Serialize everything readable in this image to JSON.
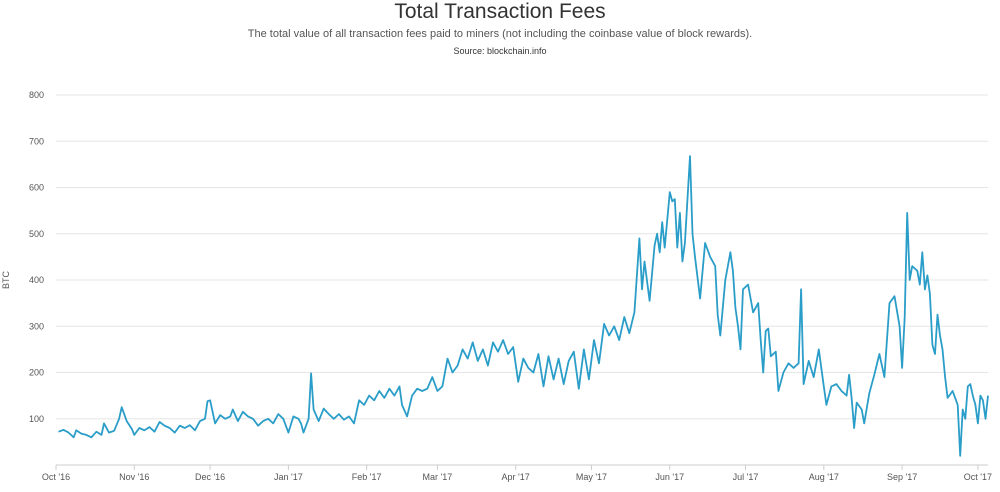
{
  "header": {
    "title": "Total Transaction Fees",
    "subtitle": "The total value of all transaction fees paid to miners (not including the coinbase value of block rewards).",
    "source": "Source: blockchain.info"
  },
  "colors": {
    "line": "#2a9dc8",
    "grid": "#e6e6e6",
    "axis": "#cccccc"
  },
  "chart_data": {
    "type": "line",
    "title": "Total Transaction Fees",
    "xlabel": "",
    "ylabel": "BTC",
    "ylim": [
      0,
      800
    ],
    "yticks": [
      100,
      200,
      300,
      400,
      500,
      600,
      700,
      800
    ],
    "x_range_days": [
      0,
      369
    ],
    "xticks": [
      {
        "label": "Oct '16",
        "day": 0
      },
      {
        "label": "Nov '16",
        "day": 31
      },
      {
        "label": "Dec '16",
        "day": 61
      },
      {
        "label": "Jan '17",
        "day": 92
      },
      {
        "label": "Feb '17",
        "day": 123
      },
      {
        "label": "Mar '17",
        "day": 151
      },
      {
        "label": "Apr '17",
        "day": 182
      },
      {
        "label": "May '17",
        "day": 212
      },
      {
        "label": "Jun '17",
        "day": 243
      },
      {
        "label": "Jul '17",
        "day": 273
      },
      {
        "label": "Aug '17",
        "day": 304
      },
      {
        "label": "Sep '17",
        "day": 335
      },
      {
        "label": "Oct '17",
        "day": 365
      }
    ],
    "series": [
      {
        "name": "Total Transaction Fees (BTC)",
        "points": [
          [
            1,
            72
          ],
          [
            3,
            76
          ],
          [
            5,
            70
          ],
          [
            7,
            60
          ],
          [
            8,
            75
          ],
          [
            10,
            68
          ],
          [
            12,
            65
          ],
          [
            14,
            60
          ],
          [
            16,
            72
          ],
          [
            18,
            65
          ],
          [
            19,
            90
          ],
          [
            21,
            70
          ],
          [
            23,
            74
          ],
          [
            25,
            100
          ],
          [
            26,
            125
          ],
          [
            28,
            95
          ],
          [
            30,
            78
          ],
          [
            31,
            65
          ],
          [
            33,
            80
          ],
          [
            35,
            75
          ],
          [
            37,
            82
          ],
          [
            39,
            72
          ],
          [
            41,
            93
          ],
          [
            43,
            85
          ],
          [
            45,
            80
          ],
          [
            47,
            70
          ],
          [
            49,
            85
          ],
          [
            51,
            80
          ],
          [
            53,
            86
          ],
          [
            55,
            75
          ],
          [
            57,
            95
          ],
          [
            59,
            100
          ],
          [
            60,
            138
          ],
          [
            61,
            140
          ],
          [
            63,
            90
          ],
          [
            65,
            108
          ],
          [
            67,
            100
          ],
          [
            69,
            105
          ],
          [
            70,
            120
          ],
          [
            72,
            95
          ],
          [
            74,
            115
          ],
          [
            76,
            105
          ],
          [
            78,
            100
          ],
          [
            80,
            85
          ],
          [
            82,
            95
          ],
          [
            84,
            100
          ],
          [
            86,
            90
          ],
          [
            88,
            110
          ],
          [
            90,
            100
          ],
          [
            92,
            70
          ],
          [
            94,
            105
          ],
          [
            96,
            100
          ],
          [
            97,
            90
          ],
          [
            98,
            70
          ],
          [
            100,
            100
          ],
          [
            101,
            198
          ],
          [
            102,
            120
          ],
          [
            104,
            95
          ],
          [
            106,
            122
          ],
          [
            108,
            110
          ],
          [
            110,
            100
          ],
          [
            112,
            110
          ],
          [
            114,
            98
          ],
          [
            116,
            105
          ],
          [
            118,
            90
          ],
          [
            120,
            140
          ],
          [
            122,
            130
          ],
          [
            124,
            150
          ],
          [
            126,
            140
          ],
          [
            128,
            160
          ],
          [
            130,
            145
          ],
          [
            132,
            165
          ],
          [
            134,
            150
          ],
          [
            136,
            170
          ],
          [
            137,
            130
          ],
          [
            139,
            105
          ],
          [
            141,
            150
          ],
          [
            143,
            165
          ],
          [
            145,
            160
          ],
          [
            147,
            165
          ],
          [
            149,
            190
          ],
          [
            151,
            160
          ],
          [
            153,
            170
          ],
          [
            155,
            230
          ],
          [
            157,
            200
          ],
          [
            159,
            215
          ],
          [
            161,
            250
          ],
          [
            163,
            230
          ],
          [
            165,
            265
          ],
          [
            167,
            225
          ],
          [
            169,
            250
          ],
          [
            171,
            215
          ],
          [
            173,
            265
          ],
          [
            175,
            245
          ],
          [
            177,
            270
          ],
          [
            179,
            240
          ],
          [
            181,
            255
          ],
          [
            183,
            180
          ],
          [
            185,
            230
          ],
          [
            187,
            210
          ],
          [
            189,
            200
          ],
          [
            191,
            240
          ],
          [
            193,
            170
          ],
          [
            195,
            235
          ],
          [
            197,
            185
          ],
          [
            199,
            230
          ],
          [
            201,
            175
          ],
          [
            203,
            225
          ],
          [
            205,
            245
          ],
          [
            207,
            165
          ],
          [
            209,
            250
          ],
          [
            211,
            185
          ],
          [
            213,
            270
          ],
          [
            215,
            220
          ],
          [
            217,
            305
          ],
          [
            219,
            280
          ],
          [
            221,
            300
          ],
          [
            223,
            270
          ],
          [
            225,
            320
          ],
          [
            227,
            285
          ],
          [
            229,
            330
          ],
          [
            231,
            490
          ],
          [
            232,
            380
          ],
          [
            233,
            440
          ],
          [
            235,
            355
          ],
          [
            237,
            475
          ],
          [
            238,
            500
          ],
          [
            239,
            460
          ],
          [
            240,
            525
          ],
          [
            241,
            470
          ],
          [
            243,
            590
          ],
          [
            244,
            570
          ],
          [
            245,
            575
          ],
          [
            246,
            470
          ],
          [
            247,
            545
          ],
          [
            248,
            440
          ],
          [
            249,
            480
          ],
          [
            251,
            668
          ],
          [
            252,
            500
          ],
          [
            253,
            450
          ],
          [
            255,
            360
          ],
          [
            257,
            480
          ],
          [
            259,
            450
          ],
          [
            261,
            430
          ],
          [
            262,
            325
          ],
          [
            263,
            280
          ],
          [
            265,
            400
          ],
          [
            267,
            460
          ],
          [
            268,
            420
          ],
          [
            269,
            340
          ],
          [
            270,
            300
          ],
          [
            271,
            250
          ],
          [
            272,
            380
          ],
          [
            274,
            390
          ],
          [
            276,
            330
          ],
          [
            278,
            350
          ],
          [
            279,
            270
          ],
          [
            280,
            200
          ],
          [
            281,
            290
          ],
          [
            282,
            295
          ],
          [
            283,
            235
          ],
          [
            285,
            245
          ],
          [
            286,
            160
          ],
          [
            288,
            200
          ],
          [
            290,
            220
          ],
          [
            292,
            210
          ],
          [
            294,
            220
          ],
          [
            295,
            380
          ],
          [
            296,
            175
          ],
          [
            298,
            225
          ],
          [
            300,
            190
          ],
          [
            302,
            250
          ],
          [
            304,
            170
          ],
          [
            305,
            130
          ],
          [
            307,
            170
          ],
          [
            309,
            175
          ],
          [
            311,
            160
          ],
          [
            313,
            150
          ],
          [
            314,
            195
          ],
          [
            315,
            145
          ],
          [
            316,
            80
          ],
          [
            317,
            135
          ],
          [
            319,
            120
          ],
          [
            320,
            90
          ],
          [
            322,
            155
          ],
          [
            324,
            195
          ],
          [
            326,
            240
          ],
          [
            328,
            190
          ],
          [
            330,
            350
          ],
          [
            332,
            365
          ],
          [
            334,
            300
          ],
          [
            335,
            210
          ],
          [
            336,
            320
          ],
          [
            337,
            545
          ],
          [
            338,
            400
          ],
          [
            339,
            430
          ],
          [
            341,
            420
          ],
          [
            342,
            390
          ],
          [
            343,
            460
          ],
          [
            344,
            380
          ],
          [
            345,
            410
          ],
          [
            346,
            370
          ],
          [
            347,
            260
          ],
          [
            348,
            240
          ],
          [
            349,
            325
          ],
          [
            350,
            280
          ],
          [
            351,
            250
          ],
          [
            352,
            190
          ],
          [
            353,
            145
          ],
          [
            355,
            160
          ],
          [
            356,
            145
          ],
          [
            357,
            130
          ],
          [
            358,
            20
          ],
          [
            359,
            120
          ],
          [
            360,
            100
          ],
          [
            361,
            170
          ],
          [
            362,
            175
          ],
          [
            363,
            150
          ],
          [
            364,
            130
          ],
          [
            365,
            90
          ],
          [
            366,
            150
          ],
          [
            367,
            140
          ],
          [
            368,
            100
          ],
          [
            369,
            150
          ]
        ]
      }
    ]
  }
}
